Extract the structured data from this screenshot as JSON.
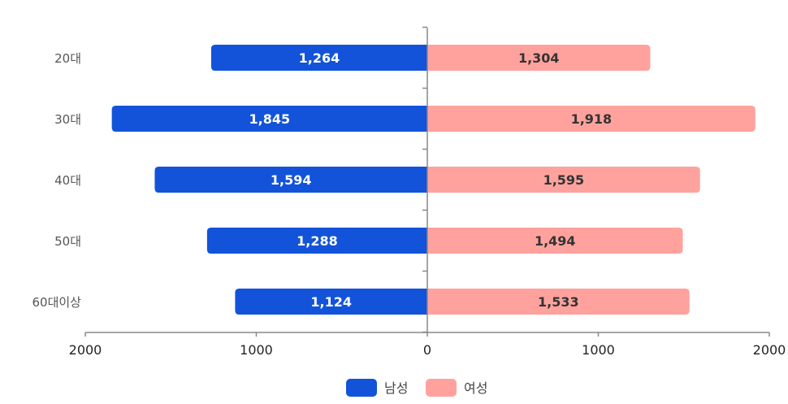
{
  "chart_data": {
    "type": "bar",
    "orientation": "horizontal",
    "layout": "diverging",
    "categories": [
      "20대",
      "30대",
      "40대",
      "50대",
      "60대이상"
    ],
    "series": [
      {
        "name": "남성",
        "side": "left",
        "color": "#1253d9",
        "label_color": "#ffffff",
        "values": [
          1264,
          1845,
          1594,
          1288,
          1124
        ],
        "labels": [
          "1,264",
          "1,845",
          "1,594",
          "1,288",
          "1,124"
        ]
      },
      {
        "name": "여성",
        "side": "right",
        "color": "#ffa29e",
        "label_color": "#333333",
        "values": [
          1304,
          1918,
          1595,
          1494,
          1533
        ],
        "labels": [
          "1,304",
          "1,918",
          "1,595",
          "1,494",
          "1,533"
        ]
      }
    ],
    "x_ticks": [
      {
        "value": -2000,
        "label": "2000"
      },
      {
        "value": -1000,
        "label": "1000"
      },
      {
        "value": 0,
        "label": "0"
      },
      {
        "value": 1000,
        "label": "1000"
      },
      {
        "value": 2000,
        "label": "2000"
      }
    ],
    "xlim": [
      -2000,
      2000
    ],
    "title": "",
    "xlabel": "",
    "ylabel": "",
    "grid": false,
    "legend": "bottom-center",
    "axis_color": "#888888"
  }
}
